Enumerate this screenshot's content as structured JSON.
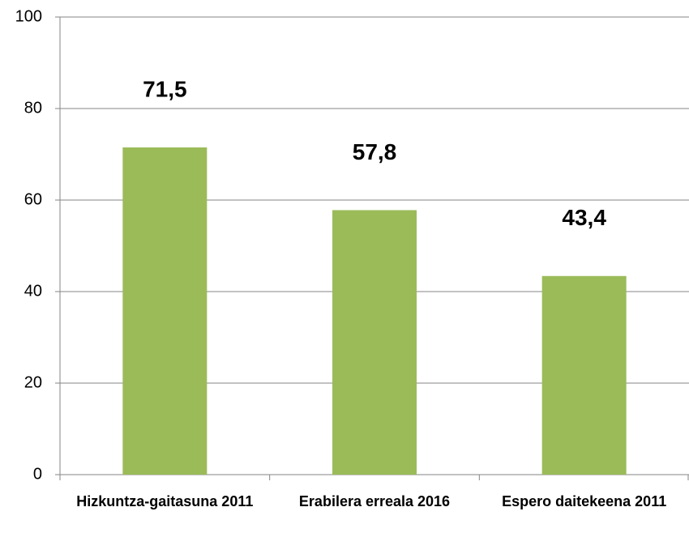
{
  "chart_data": {
    "type": "bar",
    "categories": [
      "Hizkuntza-gaitasuna 2011",
      "Erabilera erreala 2016",
      "Espero daitekeena 2011"
    ],
    "values": [
      71.5,
      57.8,
      43.4
    ],
    "value_labels": [
      "71,5",
      "57,8",
      "43,4"
    ],
    "color": "#9bbb59",
    "ylim": [
      0,
      100
    ],
    "yticks": [
      0,
      20,
      40,
      60,
      80,
      100
    ],
    "grid": true
  }
}
